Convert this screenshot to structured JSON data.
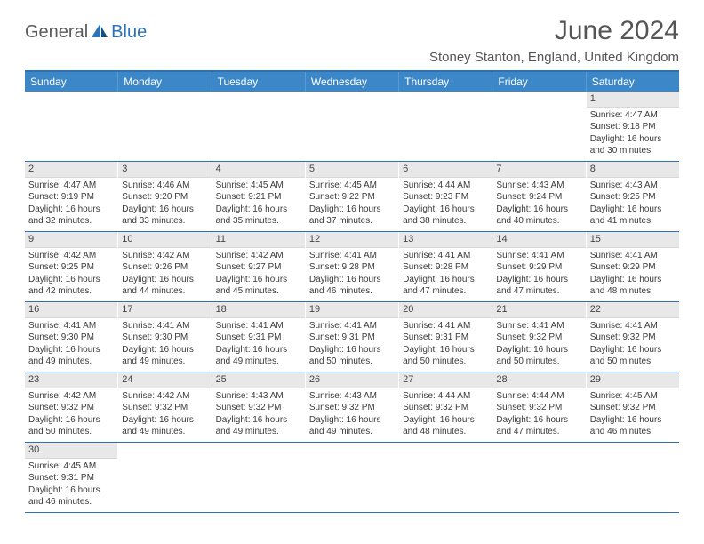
{
  "logo": {
    "part1": "General",
    "part2": "Blue"
  },
  "title": "June 2024",
  "location": "Stoney Stanton, England, United Kingdom",
  "weekdays": [
    "Sunday",
    "Monday",
    "Tuesday",
    "Wednesday",
    "Thursday",
    "Friday",
    "Saturday"
  ],
  "colors": {
    "accent": "#2d72b8",
    "header_row": "#3b87c8",
    "header_row_border": "#5a9bd4",
    "day_num_bg": "#e8e8e8",
    "text": "#3a3a3a"
  },
  "layout": {
    "columns": 7,
    "rows": 6,
    "first_weekday_index": 6
  },
  "weeks": [
    [
      {
        "n": "",
        "sunrise": "",
        "sunset": "",
        "daylight": ""
      },
      {
        "n": "",
        "sunrise": "",
        "sunset": "",
        "daylight": ""
      },
      {
        "n": "",
        "sunrise": "",
        "sunset": "",
        "daylight": ""
      },
      {
        "n": "",
        "sunrise": "",
        "sunset": "",
        "daylight": ""
      },
      {
        "n": "",
        "sunrise": "",
        "sunset": "",
        "daylight": ""
      },
      {
        "n": "",
        "sunrise": "",
        "sunset": "",
        "daylight": ""
      },
      {
        "n": "1",
        "sunrise": "Sunrise: 4:47 AM",
        "sunset": "Sunset: 9:18 PM",
        "daylight": "Daylight: 16 hours and 30 minutes."
      }
    ],
    [
      {
        "n": "2",
        "sunrise": "Sunrise: 4:47 AM",
        "sunset": "Sunset: 9:19 PM",
        "daylight": "Daylight: 16 hours and 32 minutes."
      },
      {
        "n": "3",
        "sunrise": "Sunrise: 4:46 AM",
        "sunset": "Sunset: 9:20 PM",
        "daylight": "Daylight: 16 hours and 33 minutes."
      },
      {
        "n": "4",
        "sunrise": "Sunrise: 4:45 AM",
        "sunset": "Sunset: 9:21 PM",
        "daylight": "Daylight: 16 hours and 35 minutes."
      },
      {
        "n": "5",
        "sunrise": "Sunrise: 4:45 AM",
        "sunset": "Sunset: 9:22 PM",
        "daylight": "Daylight: 16 hours and 37 minutes."
      },
      {
        "n": "6",
        "sunrise": "Sunrise: 4:44 AM",
        "sunset": "Sunset: 9:23 PM",
        "daylight": "Daylight: 16 hours and 38 minutes."
      },
      {
        "n": "7",
        "sunrise": "Sunrise: 4:43 AM",
        "sunset": "Sunset: 9:24 PM",
        "daylight": "Daylight: 16 hours and 40 minutes."
      },
      {
        "n": "8",
        "sunrise": "Sunrise: 4:43 AM",
        "sunset": "Sunset: 9:25 PM",
        "daylight": "Daylight: 16 hours and 41 minutes."
      }
    ],
    [
      {
        "n": "9",
        "sunrise": "Sunrise: 4:42 AM",
        "sunset": "Sunset: 9:25 PM",
        "daylight": "Daylight: 16 hours and 42 minutes."
      },
      {
        "n": "10",
        "sunrise": "Sunrise: 4:42 AM",
        "sunset": "Sunset: 9:26 PM",
        "daylight": "Daylight: 16 hours and 44 minutes."
      },
      {
        "n": "11",
        "sunrise": "Sunrise: 4:42 AM",
        "sunset": "Sunset: 9:27 PM",
        "daylight": "Daylight: 16 hours and 45 minutes."
      },
      {
        "n": "12",
        "sunrise": "Sunrise: 4:41 AM",
        "sunset": "Sunset: 9:28 PM",
        "daylight": "Daylight: 16 hours and 46 minutes."
      },
      {
        "n": "13",
        "sunrise": "Sunrise: 4:41 AM",
        "sunset": "Sunset: 9:28 PM",
        "daylight": "Daylight: 16 hours and 47 minutes."
      },
      {
        "n": "14",
        "sunrise": "Sunrise: 4:41 AM",
        "sunset": "Sunset: 9:29 PM",
        "daylight": "Daylight: 16 hours and 47 minutes."
      },
      {
        "n": "15",
        "sunrise": "Sunrise: 4:41 AM",
        "sunset": "Sunset: 9:29 PM",
        "daylight": "Daylight: 16 hours and 48 minutes."
      }
    ],
    [
      {
        "n": "16",
        "sunrise": "Sunrise: 4:41 AM",
        "sunset": "Sunset: 9:30 PM",
        "daylight": "Daylight: 16 hours and 49 minutes."
      },
      {
        "n": "17",
        "sunrise": "Sunrise: 4:41 AM",
        "sunset": "Sunset: 9:30 PM",
        "daylight": "Daylight: 16 hours and 49 minutes."
      },
      {
        "n": "18",
        "sunrise": "Sunrise: 4:41 AM",
        "sunset": "Sunset: 9:31 PM",
        "daylight": "Daylight: 16 hours and 49 minutes."
      },
      {
        "n": "19",
        "sunrise": "Sunrise: 4:41 AM",
        "sunset": "Sunset: 9:31 PM",
        "daylight": "Daylight: 16 hours and 50 minutes."
      },
      {
        "n": "20",
        "sunrise": "Sunrise: 4:41 AM",
        "sunset": "Sunset: 9:31 PM",
        "daylight": "Daylight: 16 hours and 50 minutes."
      },
      {
        "n": "21",
        "sunrise": "Sunrise: 4:41 AM",
        "sunset": "Sunset: 9:32 PM",
        "daylight": "Daylight: 16 hours and 50 minutes."
      },
      {
        "n": "22",
        "sunrise": "Sunrise: 4:41 AM",
        "sunset": "Sunset: 9:32 PM",
        "daylight": "Daylight: 16 hours and 50 minutes."
      }
    ],
    [
      {
        "n": "23",
        "sunrise": "Sunrise: 4:42 AM",
        "sunset": "Sunset: 9:32 PM",
        "daylight": "Daylight: 16 hours and 50 minutes."
      },
      {
        "n": "24",
        "sunrise": "Sunrise: 4:42 AM",
        "sunset": "Sunset: 9:32 PM",
        "daylight": "Daylight: 16 hours and 49 minutes."
      },
      {
        "n": "25",
        "sunrise": "Sunrise: 4:43 AM",
        "sunset": "Sunset: 9:32 PM",
        "daylight": "Daylight: 16 hours and 49 minutes."
      },
      {
        "n": "26",
        "sunrise": "Sunrise: 4:43 AM",
        "sunset": "Sunset: 9:32 PM",
        "daylight": "Daylight: 16 hours and 49 minutes."
      },
      {
        "n": "27",
        "sunrise": "Sunrise: 4:44 AM",
        "sunset": "Sunset: 9:32 PM",
        "daylight": "Daylight: 16 hours and 48 minutes."
      },
      {
        "n": "28",
        "sunrise": "Sunrise: 4:44 AM",
        "sunset": "Sunset: 9:32 PM",
        "daylight": "Daylight: 16 hours and 47 minutes."
      },
      {
        "n": "29",
        "sunrise": "Sunrise: 4:45 AM",
        "sunset": "Sunset: 9:32 PM",
        "daylight": "Daylight: 16 hours and 46 minutes."
      }
    ],
    [
      {
        "n": "30",
        "sunrise": "Sunrise: 4:45 AM",
        "sunset": "Sunset: 9:31 PM",
        "daylight": "Daylight: 16 hours and 46 minutes."
      },
      {
        "n": "",
        "sunrise": "",
        "sunset": "",
        "daylight": ""
      },
      {
        "n": "",
        "sunrise": "",
        "sunset": "",
        "daylight": ""
      },
      {
        "n": "",
        "sunrise": "",
        "sunset": "",
        "daylight": ""
      },
      {
        "n": "",
        "sunrise": "",
        "sunset": "",
        "daylight": ""
      },
      {
        "n": "",
        "sunrise": "",
        "sunset": "",
        "daylight": ""
      },
      {
        "n": "",
        "sunrise": "",
        "sunset": "",
        "daylight": ""
      }
    ]
  ]
}
